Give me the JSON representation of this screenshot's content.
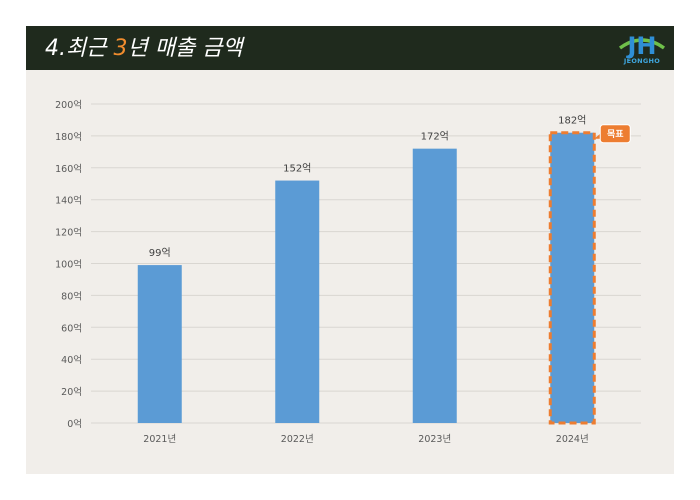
{
  "header": {
    "title_prefix": "4.최근 ",
    "title_highlight": "3",
    "title_suffix": "년 매출 금액",
    "logo_text": "JEONGHO",
    "logo_letters": "JH"
  },
  "colors": {
    "header_bg": "#1f2a1d",
    "bar": "#5b9bd5",
    "target_outline": "#ed7d31",
    "highlight": "#f08c2e"
  },
  "chart_data": {
    "type": "bar",
    "categories": [
      "2021년",
      "2022년",
      "2023년",
      "2024년"
    ],
    "values": [
      99,
      152,
      172,
      182
    ],
    "data_labels": [
      "99억",
      "152억",
      "172억",
      "182억"
    ],
    "y_ticks": [
      "0억",
      "20억",
      "40억",
      "60억",
      "80억",
      "100억",
      "120억",
      "140억",
      "160억",
      "180억",
      "200억"
    ],
    "ylim": [
      0,
      200
    ],
    "grid": true,
    "highlighted_category": "2024년",
    "callout": "목표"
  }
}
